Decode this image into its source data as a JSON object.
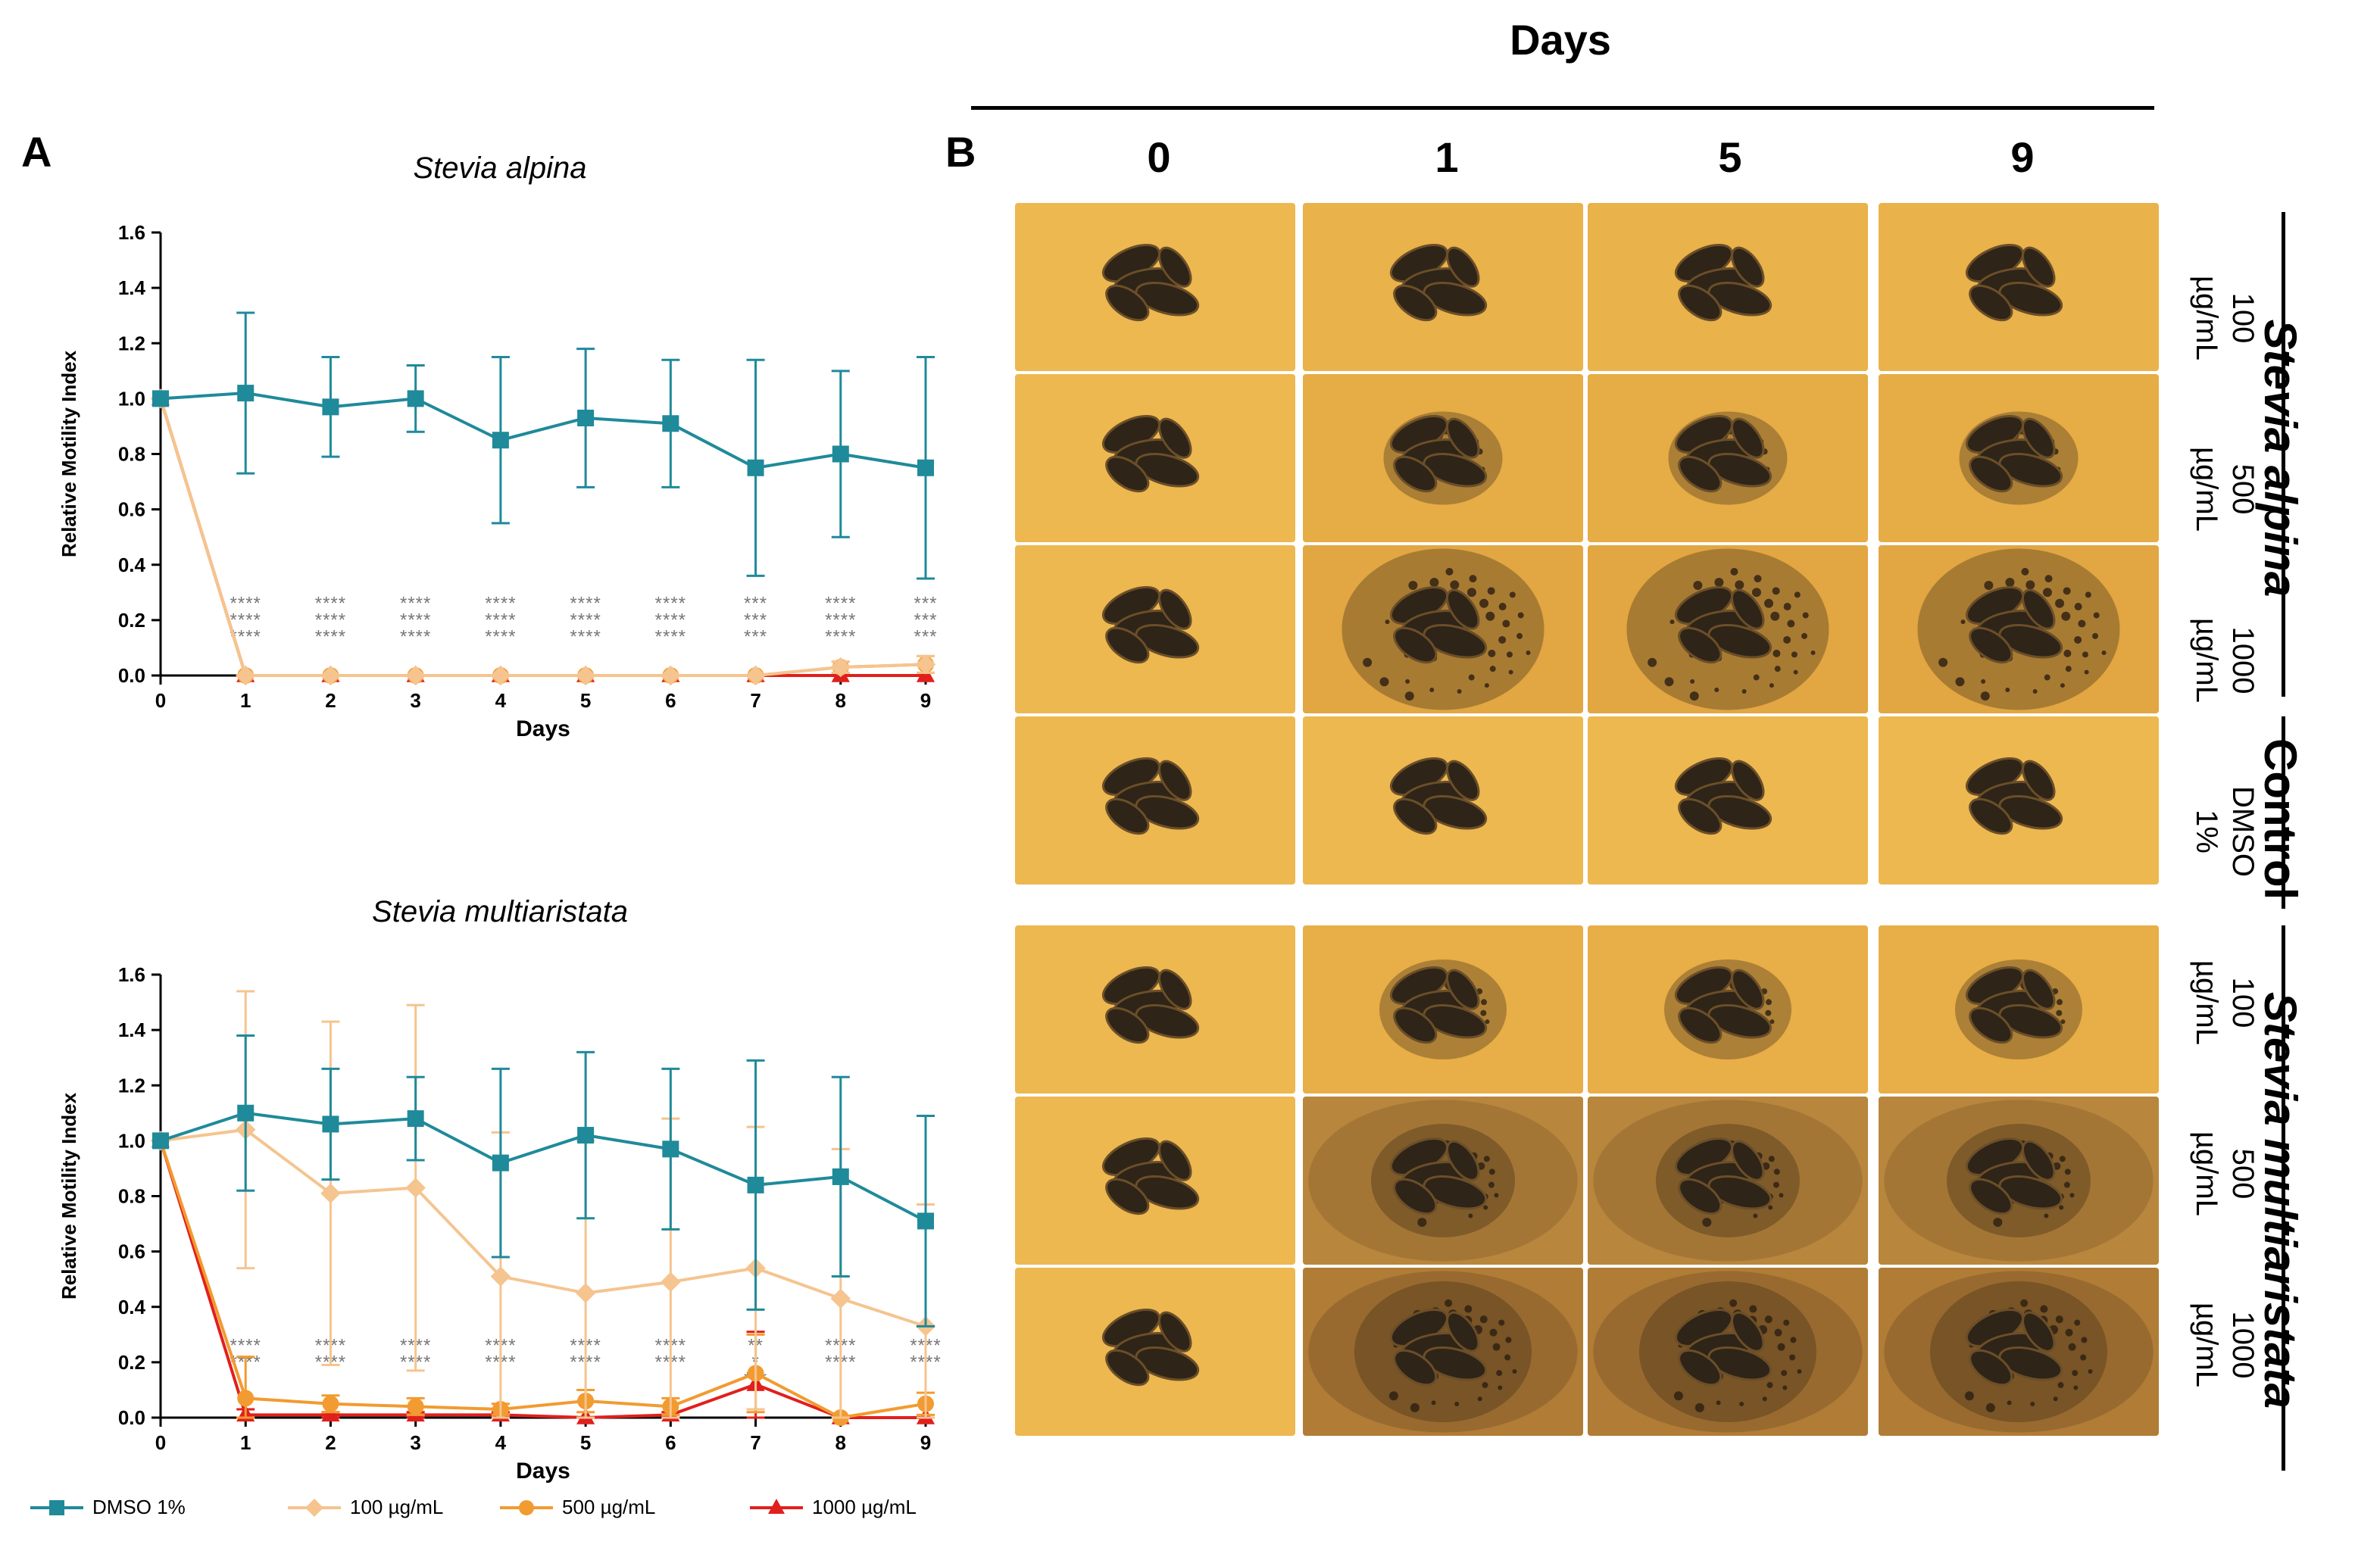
{
  "panel_a_label": "A",
  "panel_b_label": "B",
  "panel_b": {
    "header": "Days",
    "columns": [
      "0",
      "1",
      "5",
      "9"
    ],
    "groups": [
      {
        "label": "Stevia alpina",
        "rows": [
          "100\nµg/mL",
          "500\nµg/mL",
          "1000\nµg/mL"
        ]
      },
      {
        "label": "Control",
        "rows": [
          "DMSO\n1%"
        ]
      },
      {
        "label": "Stevia multiaristata",
        "rows": [
          "100\nµg/mL",
          "500\nµg/mL",
          "1000\nµg/mL"
        ]
      }
    ]
  },
  "legend": [
    {
      "label": "DMSO 1%",
      "color": "#1f8a9a",
      "marker": "square"
    },
    {
      "label": "100 µg/mL",
      "color": "#f5c48f",
      "marker": "diamond"
    },
    {
      "label": "500 µg/mL",
      "color": "#f29b30",
      "marker": "circle"
    },
    {
      "label": "1000 µg/mL",
      "color": "#e0201c",
      "marker": "triangle"
    }
  ],
  "chart_data": [
    {
      "type": "line",
      "title": "Stevia alpina",
      "xlabel": "Days",
      "ylabel": "Relative Motility Index",
      "x": [
        0,
        1,
        2,
        3,
        4,
        5,
        6,
        7,
        8,
        9
      ],
      "ylim": [
        0,
        1.6
      ],
      "yticks": [
        "0.0",
        "0.2",
        "0.4",
        "0.6",
        "0.8",
        "1.0",
        "1.2",
        "1.4",
        "1.6"
      ],
      "series": [
        {
          "name": "DMSO 1%",
          "color": "#1f8a9a",
          "marker": "square",
          "values": [
            1.0,
            1.02,
            0.97,
            1.0,
            0.85,
            0.93,
            0.91,
            0.75,
            0.8,
            0.75
          ],
          "err": [
            0,
            0.29,
            0.18,
            0.12,
            0.3,
            0.25,
            0.23,
            0.39,
            0.3,
            0.4
          ]
        },
        {
          "name": "100 µg/mL",
          "color": "#f5c48f",
          "marker": "diamond",
          "values": [
            1.0,
            0.0,
            0.0,
            0.0,
            0.0,
            0.0,
            0.0,
            0.0,
            0.03,
            0.04
          ],
          "err": [
            0,
            0,
            0,
            0,
            0,
            0,
            0,
            0,
            0.02,
            0.03
          ]
        },
        {
          "name": "500 µg/mL",
          "color": "#f29b30",
          "marker": "circle",
          "values": [
            1.0,
            0.0,
            0.0,
            0.0,
            0.0,
            0.0,
            0.0,
            0.0,
            0.03,
            0.04
          ],
          "err": [
            0,
            0,
            0,
            0,
            0,
            0,
            0,
            0,
            0.02,
            0.03
          ]
        },
        {
          "name": "1000 µg/mL",
          "color": "#e0201c",
          "marker": "triangle",
          "values": [
            1.0,
            0.0,
            0.0,
            0.0,
            0.0,
            0.0,
            0.0,
            0.0,
            0.0,
            0.0
          ],
          "err": [
            0,
            0,
            0,
            0,
            0,
            0,
            0,
            0,
            0,
            0
          ]
        }
      ],
      "annotations": [
        {
          "x": 1,
          "lines": [
            "****",
            "****",
            "****"
          ]
        },
        {
          "x": 2,
          "lines": [
            "****",
            "****",
            "****"
          ]
        },
        {
          "x": 3,
          "lines": [
            "****",
            "****",
            "****"
          ]
        },
        {
          "x": 4,
          "lines": [
            "****",
            "****",
            "****"
          ]
        },
        {
          "x": 5,
          "lines": [
            "****",
            "****",
            "****"
          ]
        },
        {
          "x": 6,
          "lines": [
            "****",
            "****",
            "****"
          ]
        },
        {
          "x": 7,
          "lines": [
            "***",
            "***",
            "***"
          ]
        },
        {
          "x": 8,
          "lines": [
            "****",
            "****",
            "****"
          ]
        },
        {
          "x": 9,
          "lines": [
            "***",
            "***",
            "***"
          ]
        }
      ]
    },
    {
      "type": "line",
      "title": "Stevia multiaristata",
      "xlabel": "Days",
      "ylabel": "Relative Motility Index",
      "x": [
        0,
        1,
        2,
        3,
        4,
        5,
        6,
        7,
        8,
        9
      ],
      "ylim": [
        0,
        1.6
      ],
      "yticks": [
        "0.0",
        "0.2",
        "0.4",
        "0.6",
        "0.8",
        "1.0",
        "1.2",
        "1.4",
        "1.6"
      ],
      "series": [
        {
          "name": "DMSO 1%",
          "color": "#1f8a9a",
          "marker": "square",
          "values": [
            1.0,
            1.1,
            1.06,
            1.08,
            0.92,
            1.02,
            0.97,
            0.84,
            0.87,
            0.71
          ],
          "err": [
            0,
            0.28,
            0.2,
            0.15,
            0.34,
            0.3,
            0.29,
            0.45,
            0.36,
            0.38
          ]
        },
        {
          "name": "100 µg/mL",
          "color": "#f5c48f",
          "marker": "diamond",
          "values": [
            1.0,
            1.04,
            0.81,
            0.83,
            0.51,
            0.45,
            0.49,
            0.54,
            0.43,
            0.33
          ],
          "err": [
            0,
            0.5,
            0.62,
            0.66,
            0.52,
            0.55,
            0.59,
            0.51,
            0.54,
            0.44
          ]
        },
        {
          "name": "500 µg/mL",
          "color": "#f29b30",
          "marker": "circle",
          "values": [
            1.0,
            0.07,
            0.05,
            0.04,
            0.03,
            0.06,
            0.04,
            0.16,
            0.0,
            0.05
          ],
          "err": [
            0,
            0.15,
            0.03,
            0.03,
            0.02,
            0.04,
            0.03,
            0.14,
            0.0,
            0.04
          ]
        },
        {
          "name": "1000 µg/mL",
          "color": "#e0201c",
          "marker": "triangle",
          "values": [
            1.0,
            0.01,
            0.01,
            0.01,
            0.01,
            0.0,
            0.01,
            0.12,
            0.0,
            0.0
          ],
          "err": [
            0,
            0.02,
            0.01,
            0.01,
            0.01,
            0.0,
            0.01,
            0.19,
            0.0,
            0.0
          ]
        }
      ],
      "annotations": [
        {
          "x": 1,
          "lines": [
            "****",
            "****"
          ]
        },
        {
          "x": 2,
          "lines": [
            "****",
            "****"
          ]
        },
        {
          "x": 3,
          "lines": [
            "****",
            "****"
          ]
        },
        {
          "x": 4,
          "lines": [
            "****",
            "****"
          ]
        },
        {
          "x": 5,
          "lines": [
            "****",
            "****"
          ]
        },
        {
          "x": 6,
          "lines": [
            "****",
            "****"
          ]
        },
        {
          "x": 7,
          "lines": [
            "**",
            "*",
            "***"
          ]
        },
        {
          "x": 8,
          "lines": [
            "****",
            "****"
          ]
        },
        {
          "x": 9,
          "lines": [
            "****",
            "****"
          ]
        }
      ]
    }
  ]
}
